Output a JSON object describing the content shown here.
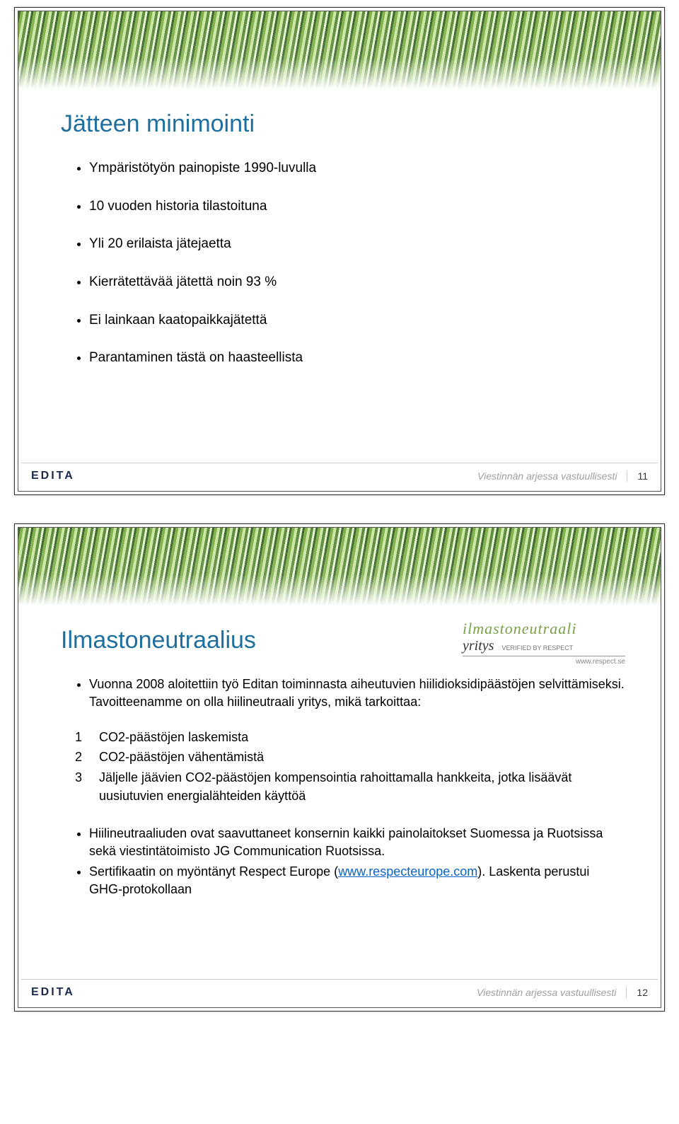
{
  "global": {
    "logo_text": "EDITA",
    "tagline": "Viestinnän arjessa vastuullisesti",
    "title_color": "#1f6f9e",
    "body_color": "#000000",
    "link_color": "#0b63c4"
  },
  "slide1": {
    "title": "Jätteen minimointi",
    "bullets": [
      "Ympäristötyön painopiste 1990-luvulla",
      "10 vuoden historia tilastoituna",
      "Yli 20 erilaista jätejaetta",
      "Kierrätettävää jätettä noin 93 %",
      "Ei lainkaan kaatopaikkajätettä",
      "Parantaminen tästä on haasteellista"
    ],
    "page_number": "11"
  },
  "slide2": {
    "title": "Ilmastoneutraalius",
    "badge": {
      "line1": "ilmastoneutraali",
      "line2_main": "yritys",
      "line2_sub": "VERIFIED BY RESPECT",
      "line3": "www.respect.se"
    },
    "intro": "Vuonna 2008 aloitettiin työ Editan toiminnasta aiheutuvien hiilidioksidipäästöjen selvittämiseksi. Tavoitteenamme on olla hiilineutraali yritys, mikä tarkoittaa:",
    "numbered": [
      "CO2-päästöjen laskemista",
      "CO2-päästöjen vähentämistä",
      "Jäljelle jäävien CO2-päästöjen kompensointia rahoittamalla hankkeita, jotka lisäävät uusiutuvien energialähteiden käyttöä"
    ],
    "bottom": [
      {
        "prefix": "Hiilineutraaliuden ovat saavuttaneet konsernin kaikki painolaitokset Suomessa ja Ruotsissa sekä viestintätoimisto JG Communication Ruotsissa.",
        "link_text": "",
        "link_href": "",
        "suffix": ""
      },
      {
        "prefix": "Sertifikaatin on myöntänyt Respect Europe (",
        "link_text": "www.respecteurope.com",
        "link_href": "http://www.respecteurope.com",
        "suffix": "). Laskenta perustui GHG-protokollaan"
      }
    ],
    "page_number": "12"
  }
}
